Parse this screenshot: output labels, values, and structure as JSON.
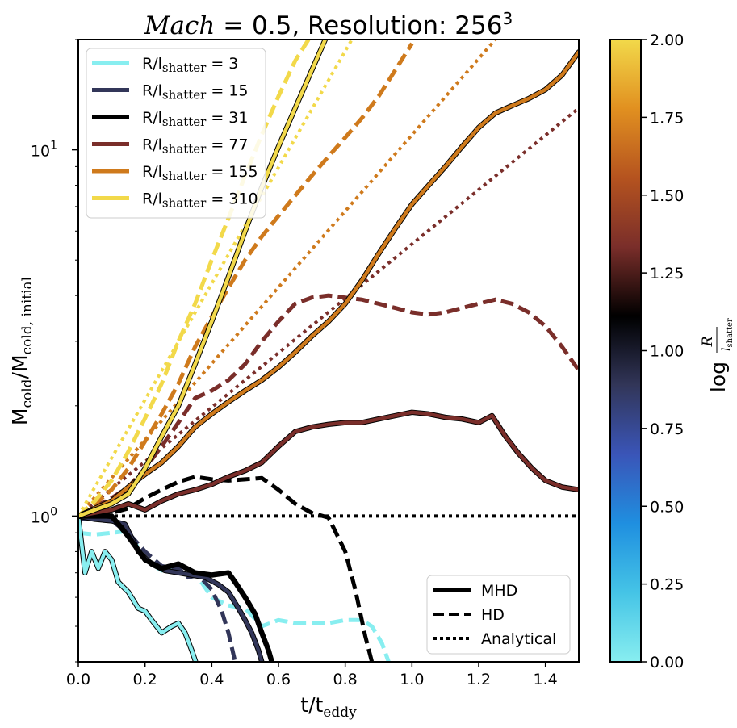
{
  "chart_data": {
    "type": "line",
    "title_prefix": "Mach",
    "title_main": " = 0.5, Resolution: 256",
    "title_sup": "3",
    "xlabel": {
      "base": "t/t",
      "sub": "eddy"
    },
    "ylabel": {
      "base": "M",
      "sub1": "cold",
      "mid": "/M",
      "sub2": "cold, initial"
    },
    "yscale": "log",
    "xlim": [
      0.0,
      1.5
    ],
    "ylim": [
      0.4,
      20
    ],
    "xticks": [
      {
        "v": 0.0,
        "label": "0.0"
      },
      {
        "v": 0.2,
        "label": "0.2"
      },
      {
        "v": 0.4,
        "label": "0.4"
      },
      {
        "v": 0.6,
        "label": "0.6"
      },
      {
        "v": 0.8,
        "label": "0.8"
      },
      {
        "v": 1.0,
        "label": "1.0"
      },
      {
        "v": 1.2,
        "label": "1.2"
      },
      {
        "v": 1.4,
        "label": "1.4"
      }
    ],
    "yticks": [
      {
        "v": 1,
        "label": "10",
        "exp": "0"
      },
      {
        "v": 10,
        "label": "10",
        "exp": "1"
      }
    ],
    "legend_ratios": {
      "position": "upper-left",
      "entries": [
        {
          "base": "R/l",
          "sub": "shatter",
          "value": " = 3",
          "color": "#88eef0"
        },
        {
          "base": "R/l",
          "sub": "shatter",
          "value": " = 15",
          "color": "#323659"
        },
        {
          "base": "R/l",
          "sub": "shatter",
          "value": " = 31",
          "color": "#000000"
        },
        {
          "base": "R/l",
          "sub": "shatter",
          "value": " = 77",
          "color": "#7a2e2a"
        },
        {
          "base": "R/l",
          "sub": "shatter",
          "value": " = 155",
          "color": "#cf7a1c"
        },
        {
          "base": "R/l",
          "sub": "shatter",
          "value": " = 310",
          "color": "#f2d94a"
        }
      ]
    },
    "legend_styles": {
      "position": "lower-right",
      "entries": [
        {
          "label": "MHD",
          "dash": "solid"
        },
        {
          "label": "HD",
          "dash": "dashed"
        },
        {
          "label": "Analytical",
          "dash": "dotted"
        }
      ]
    },
    "colorbar": {
      "label_prefix": "log",
      "label_num": "R",
      "label_den": "l",
      "label_den_sub": "shatter",
      "range": [
        0.0,
        2.0
      ],
      "ticks": [
        "0.00",
        "0.25",
        "0.50",
        "0.75",
        "1.00",
        "1.25",
        "1.50",
        "1.75",
        "2.00"
      ],
      "stops": [
        "#88eef0",
        "#45c4e6",
        "#1f8fe0",
        "#3a55b8",
        "#323659",
        "#000000",
        "#7a2e2a",
        "#b5531f",
        "#e19020",
        "#f2d94a"
      ]
    },
    "series": [
      {
        "name": "R/l=3 MHD",
        "ratio": 3,
        "style": "solid",
        "color": "#88eef0",
        "x": [
          0.0,
          0.02,
          0.04,
          0.06,
          0.08,
          0.1,
          0.12,
          0.15,
          0.18,
          0.2,
          0.22,
          0.25,
          0.28,
          0.3,
          0.32,
          0.34,
          0.36
        ],
        "y": [
          1.0,
          0.7,
          0.8,
          0.72,
          0.8,
          0.76,
          0.66,
          0.62,
          0.56,
          0.55,
          0.52,
          0.48,
          0.5,
          0.51,
          0.48,
          0.43,
          0.38
        ]
      },
      {
        "name": "R/l=3 HD",
        "ratio": 3,
        "style": "dashed",
        "color": "#88eef0",
        "x": [
          0.0,
          0.05,
          0.1,
          0.15,
          0.2,
          0.25,
          0.3,
          0.35,
          0.4,
          0.45,
          0.5,
          0.55,
          0.6,
          0.65,
          0.7,
          0.75,
          0.8,
          0.85,
          0.88,
          0.91,
          0.93
        ],
        "y": [
          0.9,
          0.89,
          0.9,
          0.91,
          0.76,
          0.71,
          0.72,
          0.7,
          0.6,
          0.57,
          0.56,
          0.5,
          0.52,
          0.51,
          0.51,
          0.51,
          0.52,
          0.52,
          0.5,
          0.45,
          0.4
        ]
      },
      {
        "name": "R/l=15 MHD",
        "ratio": 15,
        "style": "solid",
        "color": "#323659",
        "x": [
          0.0,
          0.05,
          0.1,
          0.14,
          0.18,
          0.22,
          0.26,
          0.3,
          0.34,
          0.38,
          0.42,
          0.45,
          0.48,
          0.5,
          0.52,
          0.54,
          0.55
        ],
        "y": [
          1.0,
          0.98,
          0.97,
          0.95,
          0.8,
          0.74,
          0.71,
          0.7,
          0.69,
          0.68,
          0.65,
          0.62,
          0.56,
          0.52,
          0.48,
          0.43,
          0.4
        ]
      },
      {
        "name": "R/l=15 HD",
        "ratio": 15,
        "style": "dashed",
        "color": "#323659",
        "x": [
          0.0,
          0.05,
          0.1,
          0.15,
          0.2,
          0.25,
          0.3,
          0.33,
          0.36,
          0.4,
          0.43,
          0.45,
          0.47
        ],
        "y": [
          0.98,
          0.98,
          0.97,
          0.9,
          0.8,
          0.73,
          0.72,
          0.68,
          0.69,
          0.63,
          0.55,
          0.48,
          0.4
        ]
      },
      {
        "name": "R/l=31 MHD",
        "ratio": 31,
        "style": "solid",
        "color": "#000000",
        "x": [
          0.0,
          0.05,
          0.1,
          0.15,
          0.2,
          0.25,
          0.3,
          0.35,
          0.4,
          0.45,
          0.47,
          0.5,
          0.53,
          0.55,
          0.57,
          0.58
        ],
        "y": [
          1.0,
          1.0,
          1.0,
          0.88,
          0.76,
          0.72,
          0.74,
          0.7,
          0.69,
          0.7,
          0.66,
          0.6,
          0.54,
          0.48,
          0.43,
          0.4
        ]
      },
      {
        "name": "R/l=31 HD",
        "ratio": 31,
        "style": "dashed",
        "color": "#000000",
        "x": [
          0.0,
          0.05,
          0.1,
          0.15,
          0.2,
          0.25,
          0.3,
          0.35,
          0.4,
          0.45,
          0.5,
          0.55,
          0.6,
          0.65,
          0.7,
          0.75,
          0.8,
          0.83,
          0.86,
          0.88
        ],
        "y": [
          1.0,
          1.01,
          1.02,
          1.05,
          1.12,
          1.18,
          1.24,
          1.28,
          1.26,
          1.25,
          1.26,
          1.27,
          1.18,
          1.08,
          1.02,
          0.99,
          0.8,
          0.63,
          0.47,
          0.4
        ]
      },
      {
        "name": "R/l=31 Analytical",
        "ratio": 31,
        "style": "dotted",
        "color": "#000000",
        "x": [
          0.0,
          1.5
        ],
        "y": [
          1.0,
          1.0
        ]
      },
      {
        "name": "R/l=77 MHD",
        "ratio": 77,
        "style": "solid",
        "color": "#7a2e2a",
        "x": [
          0.0,
          0.05,
          0.1,
          0.15,
          0.2,
          0.25,
          0.3,
          0.35,
          0.4,
          0.45,
          0.5,
          0.55,
          0.6,
          0.65,
          0.7,
          0.75,
          0.8,
          0.85,
          0.9,
          0.95,
          1.0,
          1.05,
          1.1,
          1.15,
          1.2,
          1.24,
          1.28,
          1.32,
          1.36,
          1.4,
          1.45,
          1.5
        ],
        "y": [
          1.0,
          1.02,
          1.04,
          1.08,
          1.04,
          1.1,
          1.15,
          1.18,
          1.22,
          1.28,
          1.33,
          1.4,
          1.55,
          1.7,
          1.75,
          1.78,
          1.8,
          1.8,
          1.84,
          1.88,
          1.92,
          1.9,
          1.86,
          1.84,
          1.8,
          1.88,
          1.65,
          1.48,
          1.35,
          1.25,
          1.2,
          1.18
        ]
      },
      {
        "name": "R/l=77 HD",
        "ratio": 77,
        "style": "dashed",
        "color": "#7a2e2a",
        "x": [
          0.0,
          0.05,
          0.1,
          0.15,
          0.2,
          0.25,
          0.3,
          0.35,
          0.4,
          0.45,
          0.5,
          0.55,
          0.6,
          0.65,
          0.7,
          0.75,
          0.8,
          0.85,
          0.9,
          0.95,
          1.0,
          1.05,
          1.1,
          1.15,
          1.2,
          1.25,
          1.3,
          1.35,
          1.4,
          1.45,
          1.5
        ],
        "y": [
          1.0,
          1.06,
          1.12,
          1.2,
          1.35,
          1.55,
          1.8,
          2.1,
          2.2,
          2.35,
          2.6,
          3.0,
          3.4,
          3.8,
          3.95,
          4.0,
          3.95,
          3.9,
          3.8,
          3.7,
          3.6,
          3.55,
          3.6,
          3.7,
          3.8,
          3.9,
          3.8,
          3.6,
          3.3,
          2.9,
          2.5
        ]
      },
      {
        "name": "R/l=77 Analytical",
        "ratio": 77,
        "style": "dotted",
        "color": "#7a2e2a",
        "x": [
          0.0,
          1.5
        ],
        "y": [
          1.0,
          13.0
        ]
      },
      {
        "name": "R/l=155 MHD",
        "ratio": 155,
        "style": "solid",
        "color": "#cf7a1c",
        "x": [
          0.0,
          0.05,
          0.1,
          0.15,
          0.2,
          0.25,
          0.3,
          0.35,
          0.4,
          0.45,
          0.5,
          0.55,
          0.6,
          0.65,
          0.7,
          0.75,
          0.8,
          0.85,
          0.9,
          0.95,
          1.0,
          1.05,
          1.1,
          1.15,
          1.2,
          1.25,
          1.3,
          1.35,
          1.4,
          1.45,
          1.5
        ],
        "y": [
          1.0,
          1.05,
          1.1,
          1.2,
          1.3,
          1.4,
          1.55,
          1.75,
          1.9,
          2.05,
          2.2,
          2.35,
          2.55,
          2.8,
          3.1,
          3.4,
          3.8,
          4.4,
          5.2,
          6.1,
          7.1,
          8.0,
          9.0,
          10.2,
          11.5,
          12.6,
          13.2,
          13.8,
          14.6,
          16.0,
          18.5
        ]
      },
      {
        "name": "R/l=155 HD",
        "ratio": 155,
        "style": "dashed",
        "color": "#cf7a1c",
        "x": [
          0.0,
          0.05,
          0.1,
          0.15,
          0.2,
          0.25,
          0.3,
          0.35,
          0.4,
          0.45,
          0.5,
          0.55,
          0.6,
          0.65,
          0.7,
          0.75,
          0.8,
          0.85,
          0.9,
          0.95,
          1.0
        ],
        "y": [
          1.0,
          1.08,
          1.18,
          1.35,
          1.6,
          1.9,
          2.3,
          2.9,
          3.5,
          4.2,
          5.0,
          5.8,
          6.6,
          7.5,
          8.5,
          9.6,
          10.8,
          12.2,
          14.0,
          16.5,
          19.5
        ]
      },
      {
        "name": "R/l=155 Analytical",
        "ratio": 155,
        "style": "dotted",
        "color": "#cf7a1c",
        "x": [
          0.0,
          1.25
        ],
        "y": [
          1.0,
          20.0
        ]
      },
      {
        "name": "R/l=310 MHD",
        "ratio": 310,
        "style": "solid",
        "color": "#f2d94a",
        "x": [
          0.0,
          0.05,
          0.1,
          0.15,
          0.2,
          0.25,
          0.3,
          0.35,
          0.4,
          0.45,
          0.5,
          0.55,
          0.6,
          0.65,
          0.7,
          0.74
        ],
        "y": [
          1.0,
          1.04,
          1.08,
          1.15,
          1.35,
          1.65,
          2.0,
          2.6,
          3.4,
          4.5,
          6.0,
          7.9,
          10.2,
          13.0,
          16.5,
          20.0
        ]
      },
      {
        "name": "R/l=310 HD",
        "ratio": 310,
        "style": "dashed",
        "color": "#f2d94a",
        "x": [
          0.0,
          0.05,
          0.1,
          0.15,
          0.2,
          0.25,
          0.3,
          0.35,
          0.4,
          0.45,
          0.5,
          0.55,
          0.6,
          0.65,
          0.69
        ],
        "y": [
          1.0,
          1.1,
          1.25,
          1.5,
          1.85,
          2.3,
          3.0,
          3.8,
          5.0,
          6.5,
          8.5,
          11.0,
          14.0,
          17.5,
          20.0
        ]
      },
      {
        "name": "R/l=310 Analytical",
        "ratio": 310,
        "style": "dotted",
        "color": "#f2d94a",
        "x": [
          0.0,
          0.82
        ],
        "y": [
          1.0,
          20.0
        ]
      }
    ]
  }
}
